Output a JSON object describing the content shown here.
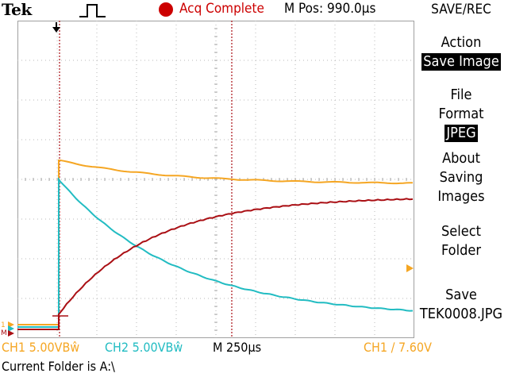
{
  "header": {
    "brand": "Tek",
    "acq_status": "Acq Complete",
    "m_pos": "M Pos: 990.0µs",
    "status_color": "#cc0000"
  },
  "menu": {
    "title": "SAVE/REC",
    "items": [
      {
        "lines": [
          "Action"
        ],
        "value": "Save Image"
      },
      {
        "lines": [
          "File",
          "Format"
        ],
        "value": "JPEG"
      },
      {
        "lines": [
          "About",
          "Saving",
          "Images"
        ],
        "value": ""
      },
      {
        "lines": [
          "Select",
          "Folder"
        ],
        "value": ""
      },
      {
        "lines": [
          "Save"
        ],
        "value": "TEK0008.JPG"
      }
    ]
  },
  "status_bar": {
    "ch1": "CH1  5.00VBŵ",
    "ch2": "CH2  5.00VBŵ",
    "timebase": "M 250µs",
    "trigger": "CH1 ∕ 7.60V",
    "folder": "Current Folder is A:\\"
  },
  "colors": {
    "ch1": "#f5a623",
    "ch2": "#22bcc2",
    "math": "#aa0f14",
    "grid": "#b0b0b0"
  },
  "waveform_data": {
    "time_per_div_us": 250,
    "volts_per_div": 5.0,
    "trigger_level_v": 7.6
  }
}
